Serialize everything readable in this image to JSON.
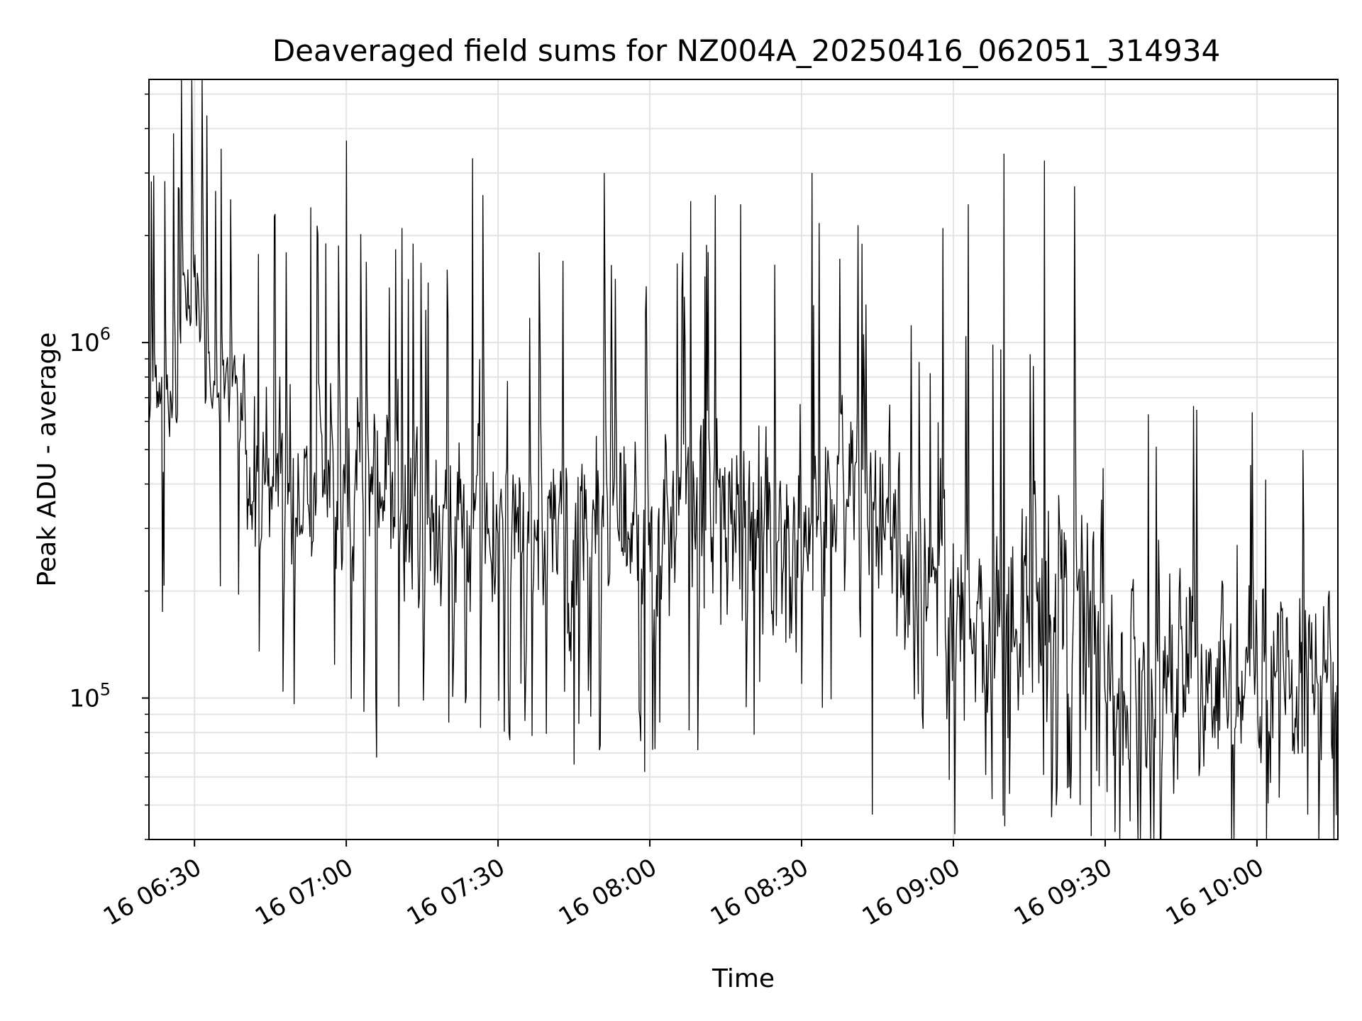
{
  "chart_data": {
    "type": "line",
    "title": "Deaveraged field sums for NZ004A_20250416_062051_314934",
    "xlabel": "Time",
    "ylabel": "Peak ADU - average",
    "yscale": "log",
    "ylim": [
      40000,
      5500000
    ],
    "x_ticks": [
      {
        "label": "16 06:30",
        "minutes_since_0600": 30
      },
      {
        "label": "16 07:00",
        "minutes_since_0600": 60
      },
      {
        "label": "16 07:30",
        "minutes_since_0600": 90
      },
      {
        "label": "16 08:00",
        "minutes_since_0600": 120
      },
      {
        "label": "16 08:30",
        "minutes_since_0600": 150
      },
      {
        "label": "16 09:00",
        "minutes_since_0600": 180
      },
      {
        "label": "16 09:30",
        "minutes_since_0600": 210
      },
      {
        "label": "16 10:00",
        "minutes_since_0600": 240
      }
    ],
    "y_ticks": [
      {
        "base": "10",
        "exp": "5",
        "value": 100000
      },
      {
        "base": "10",
        "exp": "6",
        "value": 1000000
      }
    ],
    "grid": true,
    "line_color": "#000000",
    "series": [
      {
        "x_range_times": [
          "06:21",
          "10:16"
        ],
        "samples": 1500,
        "description": "noisy series; mean amplitude segments (start, end, log10 center, spread)",
        "segments": [
          {
            "t0": "06:21",
            "t1": "06:27",
            "log_center": 5.82,
            "log_spread": 0.12
          },
          {
            "t0": "06:27",
            "t1": "06:32",
            "log_center": 6.1,
            "log_spread": 0.15
          },
          {
            "t0": "06:32",
            "t1": "06:40",
            "log_center": 5.85,
            "log_spread": 0.15
          },
          {
            "t0": "06:40",
            "t1": "07:10",
            "log_center": 5.6,
            "log_spread": 0.3
          },
          {
            "t0": "07:10",
            "t1": "08:30",
            "log_center": 5.5,
            "log_spread": 0.4
          },
          {
            "t0": "08:30",
            "t1": "08:50",
            "log_center": 5.55,
            "log_spread": 0.35
          },
          {
            "t0": "08:50",
            "t1": "09:30",
            "log_center": 5.25,
            "log_spread": 0.45
          },
          {
            "t0": "09:30",
            "t1": "10:16",
            "log_center": 5.05,
            "log_spread": 0.38
          }
        ],
        "peaks": [
          {
            "time": "06:27",
            "value": 2700000
          },
          {
            "time": "06:46",
            "value": 2300000
          },
          {
            "time": "06:53",
            "value": 2400000
          },
          {
            "time": "06:56",
            "value": 1900000
          },
          {
            "time": "07:00",
            "value": 3700000
          },
          {
            "time": "07:06",
            "value": 2150000
          },
          {
            "time": "07:11",
            "value": 2100000
          },
          {
            "time": "07:25",
            "value": 3300000
          },
          {
            "time": "07:27",
            "value": 2600000
          },
          {
            "time": "07:51",
            "value": 3000000
          },
          {
            "time": "08:08",
            "value": 2500000
          },
          {
            "time": "08:13",
            "value": 2600000
          },
          {
            "time": "08:18",
            "value": 2450000
          },
          {
            "time": "08:32",
            "value": 3000000
          },
          {
            "time": "08:58",
            "value": 2100000
          },
          {
            "time": "09:03",
            "value": 2450000
          },
          {
            "time": "09:10",
            "value": 3400000
          },
          {
            "time": "09:18",
            "value": 3250000
          },
          {
            "time": "09:24",
            "value": 2750000
          },
          {
            "time": "09:35",
            "value": 2400000
          }
        ],
        "troughs": [
          {
            "time": "07:06",
            "value": 68000
          },
          {
            "time": "07:45",
            "value": 65000
          },
          {
            "time": "07:59",
            "value": 62000
          },
          {
            "time": "08:44",
            "value": 47000
          },
          {
            "time": "09:25",
            "value": 50000
          },
          {
            "time": "09:32",
            "value": 42000
          },
          {
            "time": "09:35",
            "value": 45000
          },
          {
            "time": "10:10",
            "value": 47000
          }
        ]
      }
    ]
  }
}
